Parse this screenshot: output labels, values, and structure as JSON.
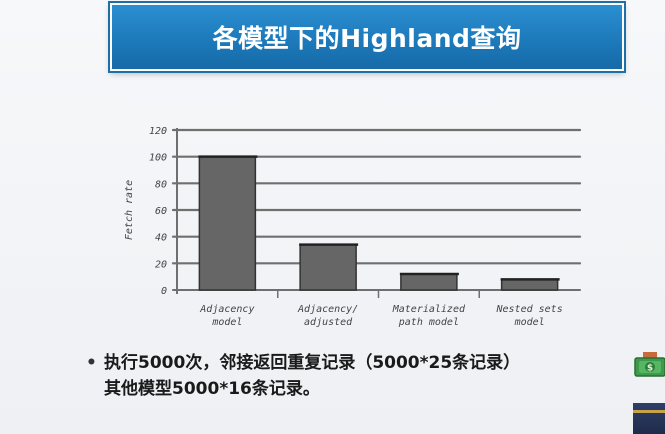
{
  "title": "各模型下的Highland查询",
  "chart_data": {
    "type": "bar",
    "title": "",
    "ylabel": "Fetch rate",
    "xlabel": "",
    "ylim": [
      0,
      120
    ],
    "yticks": [
      "0",
      "20",
      "40",
      "60",
      "80",
      "100",
      "120"
    ],
    "categories": [
      [
        "Adjacency",
        "model"
      ],
      [
        "Adjacency/",
        "adjusted"
      ],
      [
        "Materialized",
        "path model"
      ],
      [
        "Nested sets",
        "model"
      ]
    ],
    "values": [
      100,
      34,
      12,
      8
    ],
    "grid": true,
    "bar_color": "#666666"
  },
  "bullets": {
    "line1": "执行5000次，邻接返回重复记录（5000*25条记录）",
    "line2": "其他模型5000*16条记录。"
  },
  "bullet_symbol": "•"
}
